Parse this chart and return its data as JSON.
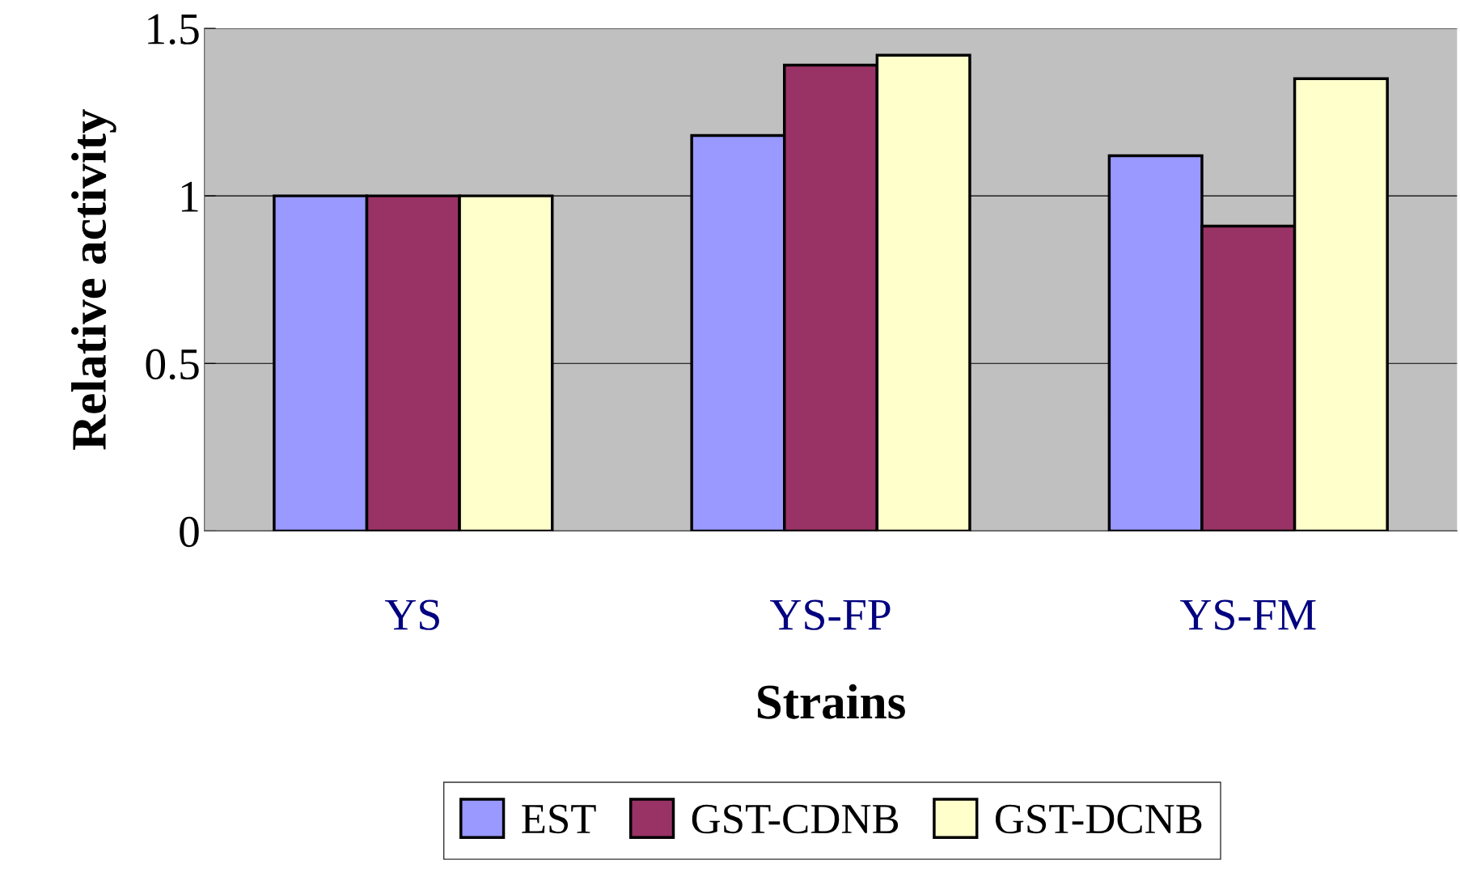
{
  "chart_data": {
    "type": "bar",
    "xlabel": "Strains",
    "ylabel": "Relative activity",
    "categories": [
      "YS",
      "YS-FP",
      "YS-FM"
    ],
    "series": [
      {
        "name": "EST",
        "color": "#9999ff",
        "values": [
          1.0,
          1.18,
          1.12
        ]
      },
      {
        "name": "GST-CDNB",
        "color": "#993366",
        "values": [
          1.0,
          1.39,
          0.91
        ]
      },
      {
        "name": "GST-DCNB",
        "color": "#ffffcc",
        "values": [
          1.0,
          1.42,
          1.35
        ]
      }
    ],
    "ylim": [
      0,
      1.5
    ],
    "yticks": [
      0,
      0.5,
      1,
      1.5
    ],
    "grid": "y",
    "legend": "bottom"
  }
}
